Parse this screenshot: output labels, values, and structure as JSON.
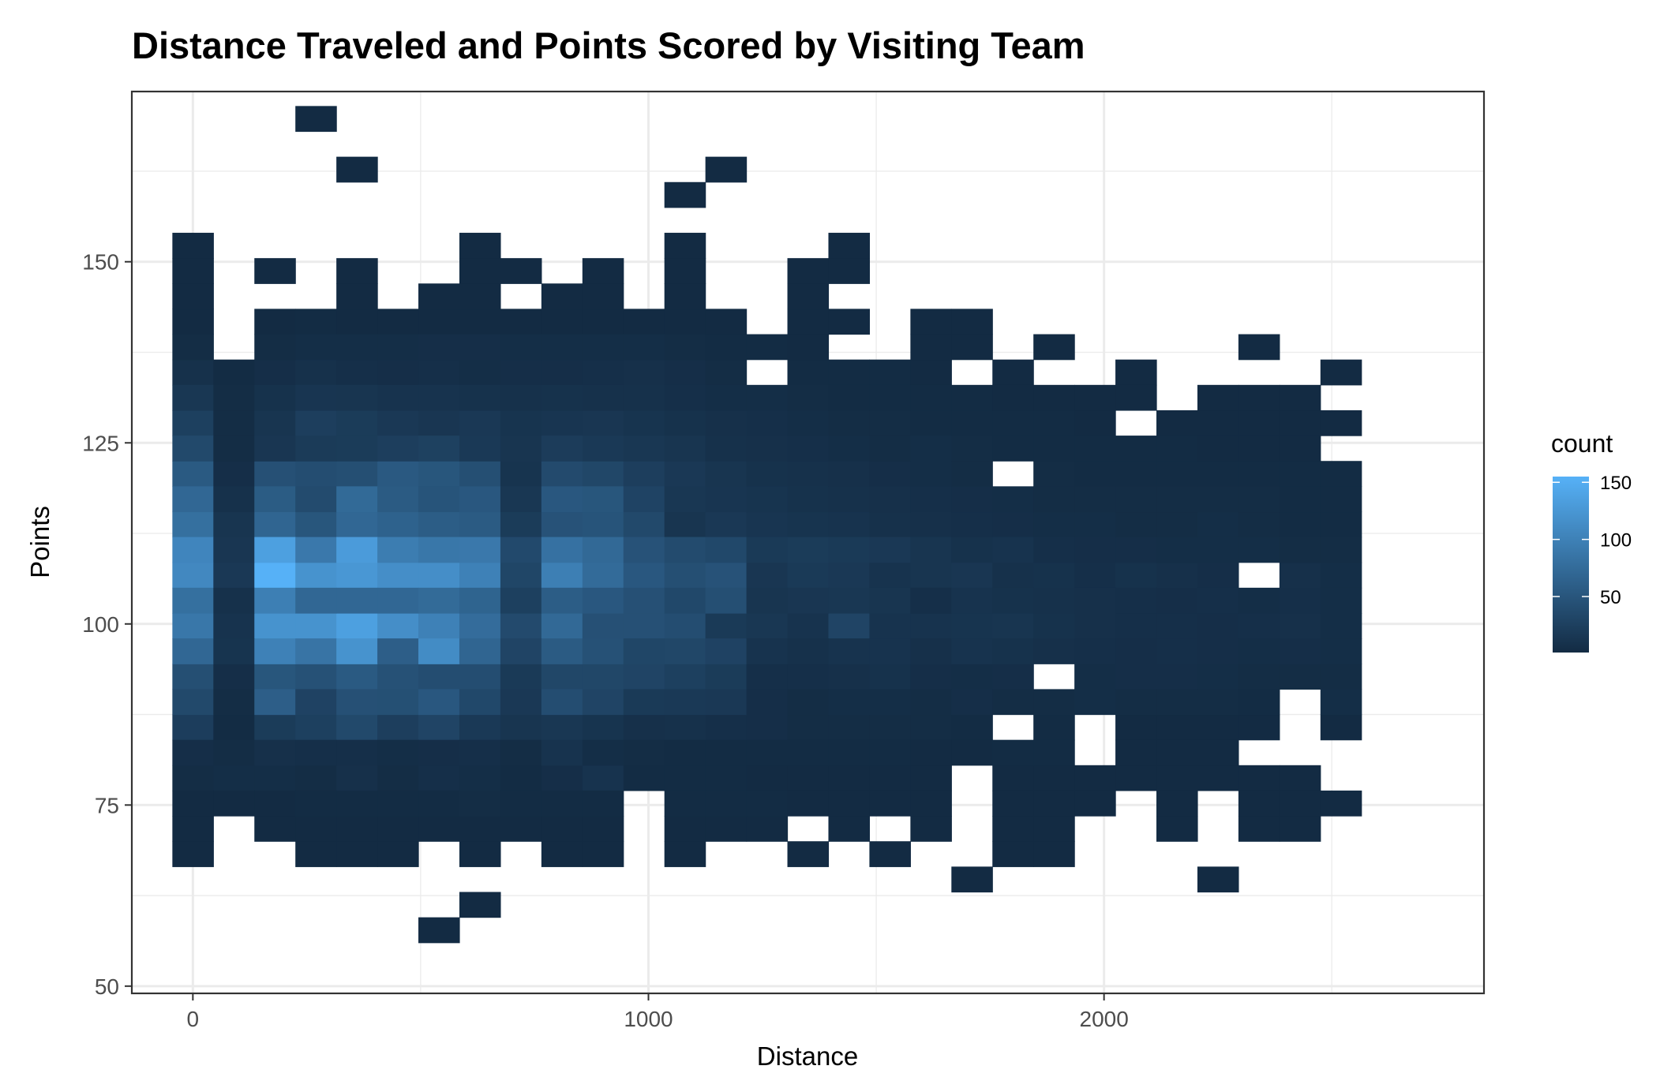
{
  "chart_data": {
    "type": "heatmap",
    "title": "Distance Traveled and Points Scored by Visiting Team",
    "xlabel": "Distance",
    "ylabel": "Points",
    "xlim": [
      -134,
      2834
    ],
    "ylim": [
      49,
      173.5
    ],
    "x_ticks": [
      0,
      1000,
      2000
    ],
    "y_ticks": [
      50,
      75,
      100,
      125,
      150
    ],
    "grid": true,
    "bin_width_x": 90,
    "bin_height_y": 3.5,
    "x_bin_start": 0,
    "y_bin_start": 66.5,
    "color_low": "#132B43",
    "color_high": "#56B1F7",
    "count_range": [
      1,
      155
    ],
    "legend": {
      "title": "count",
      "position": "right",
      "ticks": [
        50,
        100,
        150
      ]
    },
    "bins": [
      {
        "row": "66.5–70",
        "cols": [
          0,
          3,
          4,
          5,
          7,
          9,
          10,
          12,
          15,
          17,
          20,
          21
        ]
      },
      {
        "row": "56–59.5 / 59.5–63 / 63–66.5",
        "cols": []
      }
    ],
    "data": [
      {
        "y": 168,
        "x": [
          270,
          360
        ],
        "count": [
          0,
          0
        ]
      }
    ]
  }
}
